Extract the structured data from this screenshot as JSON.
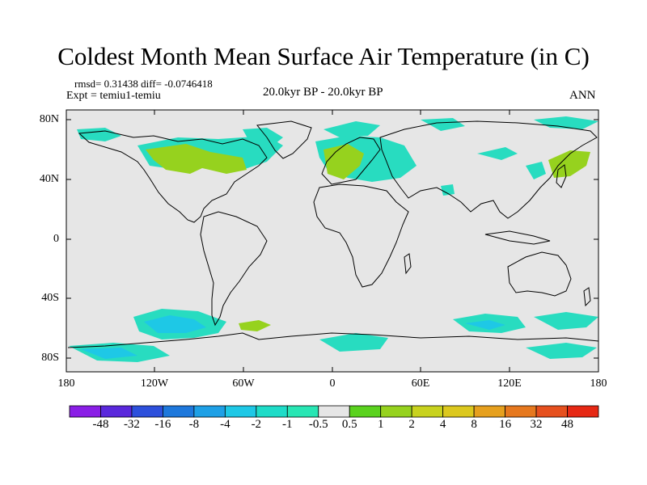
{
  "title": "Coldest Month Mean Surface Air Temperature (in C)",
  "stats": "rmsd= 0.31438  diff= -0.0746418",
  "expt": "Expt = temiu1-temiu",
  "period": "20.0kyr BP - 20.0kyr BP",
  "season": "ANN",
  "map": {
    "lat_labels": [
      "80N",
      "40N",
      "0",
      "40S",
      "80S"
    ],
    "lon_labels": [
      "180",
      "120W",
      "60W",
      "0",
      "60E",
      "120E",
      "180"
    ],
    "background_color": "#e6e6e6"
  },
  "colorbar": {
    "labels": [
      "-48",
      "-32",
      "-16",
      "-8",
      "-4",
      "-2",
      "-1",
      "-0.5",
      "0.5",
      "1",
      "2",
      "4",
      "8",
      "16",
      "32",
      "48"
    ],
    "colors": [
      "#8a1ee6",
      "#5a28dc",
      "#2d50dc",
      "#1e78dc",
      "#1ea0e6",
      "#1ec8e6",
      "#1edcc8",
      "#28e6b4",
      "#e6e6e6",
      "#5ad21e",
      "#96d21e",
      "#c8d21e",
      "#dcc81e",
      "#e6a01e",
      "#e6781e",
      "#e6501e",
      "#e62814"
    ]
  }
}
